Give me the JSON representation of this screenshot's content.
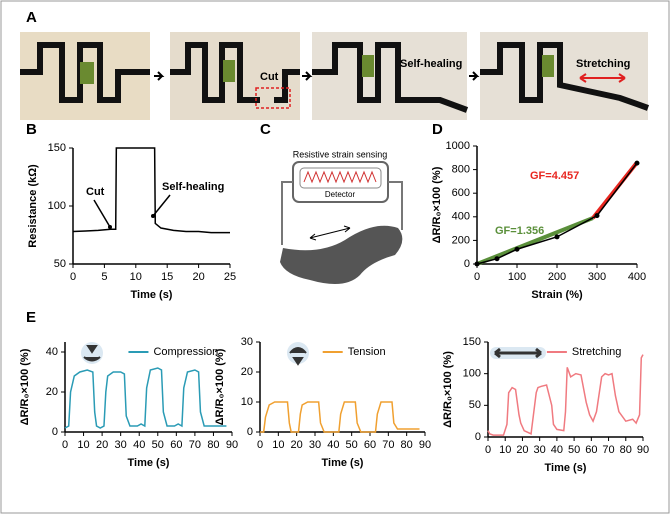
{
  "figure": {
    "panel_labels": [
      "A",
      "B",
      "C",
      "D",
      "E"
    ],
    "photo_captions": [
      "Cut",
      "Self-healing",
      "Stretching"
    ],
    "diagram": {
      "title": "Resistive strain sensing",
      "detector": "Detector"
    }
  },
  "chart_data": [
    {
      "type": "line",
      "xlabel": "Time (s)",
      "ylabel": "Resistance (kΩ)",
      "xlim": [
        0,
        25
      ],
      "ylim": [
        50,
        150
      ],
      "xticks": [
        0,
        5,
        10,
        15,
        20,
        25
      ],
      "yticks": [
        50,
        100,
        150
      ],
      "x": [
        0,
        2,
        4,
        6,
        6.8,
        6.9,
        13,
        13.1,
        14,
        16,
        18,
        20,
        22,
        25
      ],
      "series": [
        {
          "color": "#000000",
          "values": [
            78,
            78.5,
            79,
            80,
            80,
            150,
            150,
            85,
            81,
            79,
            78,
            78,
            77,
            77
          ]
        }
      ],
      "annotations": [
        "Cut",
        "Self-healing"
      ]
    },
    {
      "type": "line",
      "xlabel": "Strain (%)",
      "ylabel": "ΔR/R₀×100 (%)",
      "xlim": [
        0,
        400
      ],
      "ylim": [
        0,
        1000
      ],
      "xticks": [
        0,
        100,
        200,
        300,
        400
      ],
      "yticks": [
        0,
        200,
        400,
        600,
        800,
        1000
      ],
      "x": [
        0,
        50,
        100,
        200,
        300,
        400
      ],
      "series": [
        {
          "color": "#000000",
          "values": [
            0,
            45,
            125,
            230,
            410,
            855
          ],
          "markers": true
        }
      ],
      "fits": [
        {
          "label": "GF=1.356",
          "color": "#5a8f3a",
          "x": [
            0,
            290
          ],
          "values": [
            0,
            390
          ]
        },
        {
          "label": "GF=4.457",
          "color": "#e8261f",
          "x": [
            290,
            400
          ],
          "values": [
            390,
            860
          ]
        }
      ]
    },
    {
      "type": "line",
      "xlabel": "Time (s)",
      "ylabel": "ΔR/R₀×100 (%)",
      "xlim": [
        0,
        90
      ],
      "ylim": [
        0,
        45
      ],
      "xticks": [
        0,
        10,
        20,
        30,
        40,
        50,
        60,
        70,
        80,
        90
      ],
      "yticks": [
        0,
        20,
        40
      ],
      "x": [
        0,
        2,
        3,
        5,
        8,
        12,
        15,
        16,
        17,
        19,
        21,
        22,
        23,
        26,
        30,
        32,
        33,
        35,
        39,
        41,
        43,
        44,
        46,
        50,
        52,
        53,
        55,
        59,
        61,
        63,
        64,
        66,
        70,
        72,
        73,
        75,
        80,
        85,
        87
      ],
      "series": [
        {
          "name": "Compression",
          "color": "#2a9bb5",
          "values": [
            2,
            3,
            20,
            28,
            30,
            31,
            30,
            10,
            3,
            2,
            3,
            20,
            28,
            30,
            30,
            29,
            8,
            3,
            3,
            4,
            3,
            22,
            31,
            32,
            31,
            10,
            3,
            3,
            4,
            3,
            22,
            30,
            31,
            30,
            10,
            3,
            3,
            3,
            3
          ]
        }
      ]
    },
    {
      "type": "line",
      "xlabel": "Time (s)",
      "ylabel": "ΔR/R₀×100 (%)",
      "xlim": [
        0,
        90
      ],
      "ylim": [
        0,
        30
      ],
      "xticks": [
        0,
        10,
        20,
        30,
        40,
        50,
        60,
        70,
        80,
        90
      ],
      "yticks": [
        0,
        10,
        20,
        30
      ],
      "x": [
        0,
        2,
        3,
        5,
        8,
        12,
        15,
        16,
        17,
        19,
        21,
        22,
        23,
        26,
        30,
        32,
        33,
        35,
        39,
        41,
        43,
        44,
        46,
        50,
        52,
        53,
        55,
        59,
        61,
        63,
        64,
        66,
        70,
        72,
        73,
        75,
        80,
        85,
        87
      ],
      "series": [
        {
          "name": "Tension",
          "color": "#f0a030",
          "values": [
            0,
            0,
            5,
            9,
            10,
            10,
            10,
            3,
            0,
            0,
            0,
            6,
            9,
            10,
            10,
            10,
            3,
            0,
            0,
            0,
            0,
            6,
            10,
            10,
            10,
            3,
            0,
            0,
            0,
            0,
            6,
            10,
            10,
            10,
            3,
            1,
            1,
            1,
            1
          ]
        }
      ]
    },
    {
      "type": "line",
      "xlabel": "Time (s)",
      "ylabel": "ΔR/R₀×100 (%)",
      "xlim": [
        0,
        90
      ],
      "ylim": [
        0,
        150
      ],
      "xticks": [
        0,
        10,
        20,
        30,
        40,
        50,
        60,
        70,
        80,
        90
      ],
      "yticks": [
        0,
        50,
        100,
        150
      ],
      "x": [
        0,
        1,
        3,
        6,
        9,
        11,
        12,
        14,
        16,
        18,
        19,
        21,
        25,
        28,
        29,
        31,
        34,
        37,
        38,
        40,
        44,
        45,
        46,
        48,
        51,
        54,
        57,
        59,
        61,
        63,
        66,
        68,
        70,
        72,
        74,
        76,
        80,
        84,
        86,
        88,
        89,
        90
      ],
      "series": [
        {
          "name": "Stretching",
          "color": "#f07a80",
          "values": [
            10,
            5,
            3,
            3,
            3,
            20,
            70,
            78,
            75,
            35,
            22,
            10,
            5,
            70,
            78,
            80,
            82,
            50,
            20,
            12,
            10,
            40,
            110,
            95,
            100,
            98,
            55,
            35,
            25,
            40,
            95,
            100,
            98,
            100,
            65,
            40,
            25,
            28,
            22,
            35,
            125,
            130
          ]
        }
      ]
    }
  ]
}
